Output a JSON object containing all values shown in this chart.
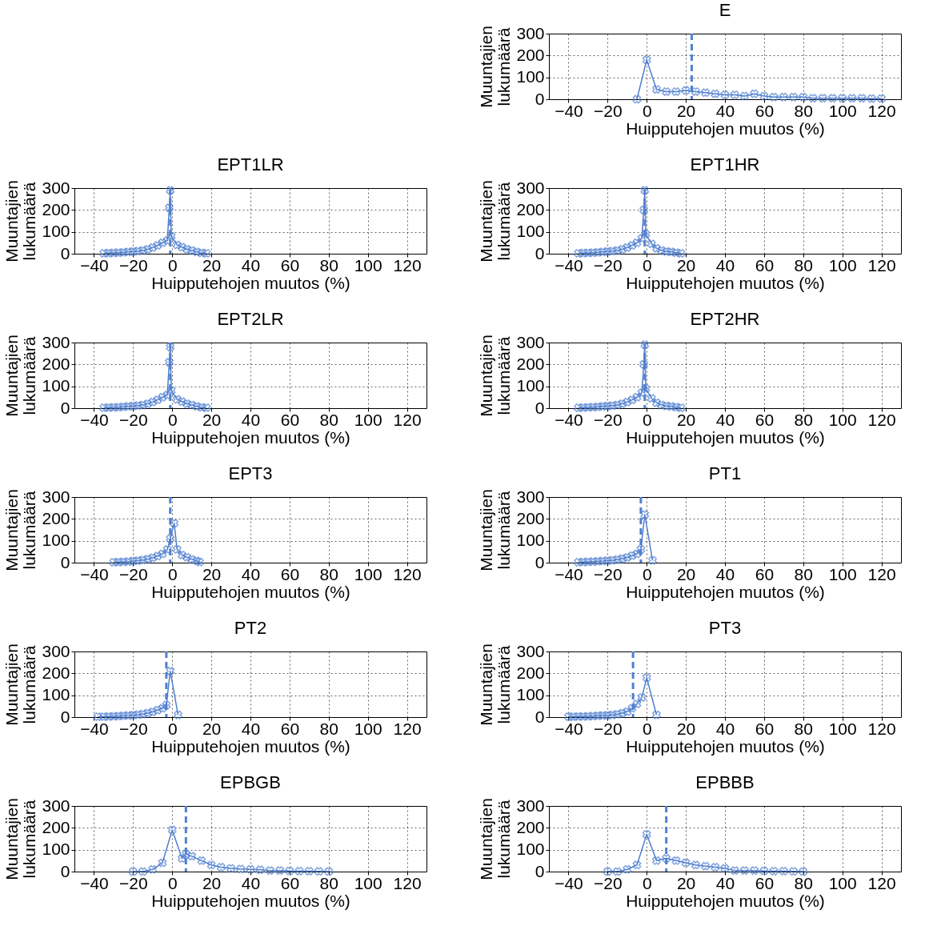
{
  "chart_data": [
    {
      "type": "line",
      "title": "E",
      "xlabel": "Huipputehojen muutos (%)",
      "ylabel": "Muuntajien lukumäärä",
      "color": "#4f7fd0",
      "marker": "cross",
      "grid": true,
      "xlim": [
        -50,
        130
      ],
      "xticks": [
        -40,
        -20,
        0,
        20,
        40,
        60,
        80,
        100,
        120
      ],
      "ylim": [
        0,
        300
      ],
      "yticks": [
        0,
        100,
        200,
        300
      ],
      "x": [
        -5,
        0,
        5,
        10,
        15,
        20,
        25,
        30,
        35,
        40,
        45,
        50,
        55,
        60,
        65,
        70,
        75,
        80,
        85,
        90,
        95,
        100,
        105,
        110,
        115,
        120
      ],
      "values": [
        0,
        180,
        45,
        35,
        35,
        40,
        35,
        30,
        25,
        20,
        20,
        15,
        25,
        15,
        10,
        10,
        10,
        10,
        5,
        5,
        5,
        5,
        5,
        5,
        3,
        3
      ],
      "ref_lines": [
        {
          "axis": "x",
          "value": 23,
          "line_style": "dashed"
        }
      ]
    },
    {
      "type": "line",
      "title": "EPT1LR",
      "xlabel": "Huipputehojen muutos (%)",
      "ylabel": "Muuntajien lukumäärä",
      "color": "#4f7fd0",
      "marker": "cross",
      "grid": true,
      "xlim": [
        -50,
        130
      ],
      "xticks": [
        -40,
        -20,
        0,
        20,
        40,
        60,
        80,
        100,
        120
      ],
      "ylim": [
        0,
        300
      ],
      "yticks": [
        0,
        100,
        200,
        300
      ],
      "x": [
        -35,
        -32.5,
        -30,
        -27.5,
        -25,
        -22.5,
        -20,
        -17.5,
        -15,
        -12.5,
        -10,
        -7.5,
        -5,
        -2.5,
        -1.5,
        -1,
        -0.5,
        2.5,
        5,
        7.5,
        10,
        12.5,
        15,
        17.5
      ],
      "values": [
        2,
        3,
        4,
        5,
        6,
        8,
        10,
        12,
        15,
        20,
        28,
        38,
        50,
        60,
        210,
        290,
        80,
        40,
        30,
        20,
        15,
        8,
        4,
        2
      ],
      "ref_lines": [
        {
          "axis": "x",
          "value": -1,
          "line_style": "dashed"
        }
      ]
    },
    {
      "type": "line",
      "title": "EPT1HR",
      "xlabel": "Huipputehojen muutos (%)",
      "ylabel": "Muuntajien lukumäärä",
      "color": "#4f7fd0",
      "marker": "cross",
      "grid": true,
      "xlim": [
        -50,
        130
      ],
      "xticks": [
        -40,
        -20,
        0,
        20,
        40,
        60,
        80,
        100,
        120
      ],
      "ylim": [
        0,
        300
      ],
      "yticks": [
        0,
        100,
        200,
        300
      ],
      "x": [
        -35,
        -32.5,
        -30,
        -27.5,
        -25,
        -22.5,
        -20,
        -17.5,
        -15,
        -12.5,
        -10,
        -7.5,
        -5,
        -2.5,
        -1.5,
        -1,
        -0.5,
        2.5,
        5,
        7.5,
        10,
        12.5,
        15,
        17.5
      ],
      "values": [
        2,
        3,
        4,
        5,
        6,
        8,
        10,
        12,
        15,
        20,
        28,
        38,
        50,
        70,
        200,
        290,
        90,
        45,
        25,
        15,
        10,
        8,
        5,
        2
      ],
      "ref_lines": [
        {
          "axis": "x",
          "value": -1,
          "line_style": "dashed"
        }
      ]
    },
    {
      "type": "line",
      "title": "EPT2LR",
      "xlabel": "Huipputehojen muutos (%)",
      "ylabel": "Muuntajien lukumäärä",
      "color": "#4f7fd0",
      "marker": "cross",
      "grid": true,
      "xlim": [
        -50,
        130
      ],
      "xticks": [
        -40,
        -20,
        0,
        20,
        40,
        60,
        80,
        100,
        120
      ],
      "ylim": [
        0,
        300
      ],
      "yticks": [
        0,
        100,
        200,
        300
      ],
      "x": [
        -35,
        -32.5,
        -30,
        -27.5,
        -25,
        -22.5,
        -20,
        -17.5,
        -15,
        -12.5,
        -10,
        -7.5,
        -5,
        -2.5,
        -1.5,
        -1,
        -0.5,
        2.5,
        5,
        7.5,
        10,
        12.5,
        15,
        17.5
      ],
      "values": [
        2,
        3,
        4,
        5,
        6,
        8,
        10,
        12,
        15,
        20,
        28,
        38,
        50,
        60,
        210,
        280,
        80,
        40,
        30,
        20,
        15,
        8,
        4,
        2
      ],
      "ref_lines": [
        {
          "axis": "x",
          "value": -1,
          "line_style": "dashed"
        }
      ]
    },
    {
      "type": "line",
      "title": "EPT2HR",
      "xlabel": "Huipputehojen muutos (%)",
      "ylabel": "Muuntajien lukumäärä",
      "color": "#4f7fd0",
      "marker": "cross",
      "grid": true,
      "xlim": [
        -50,
        130
      ],
      "xticks": [
        -40,
        -20,
        0,
        20,
        40,
        60,
        80,
        100,
        120
      ],
      "ylim": [
        0,
        300
      ],
      "yticks": [
        0,
        100,
        200,
        300
      ],
      "x": [
        -35,
        -32.5,
        -30,
        -27.5,
        -25,
        -22.5,
        -20,
        -17.5,
        -15,
        -12.5,
        -10,
        -7.5,
        -5,
        -2.5,
        -1.5,
        -1,
        -0.5,
        2.5,
        5,
        7.5,
        10,
        12.5,
        15,
        17.5
      ],
      "values": [
        2,
        3,
        4,
        5,
        6,
        8,
        10,
        12,
        15,
        20,
        28,
        38,
        50,
        70,
        200,
        290,
        90,
        45,
        25,
        15,
        10,
        8,
        5,
        2
      ],
      "ref_lines": [
        {
          "axis": "x",
          "value": -1,
          "line_style": "dashed"
        }
      ]
    },
    {
      "type": "line",
      "title": "EPT3",
      "xlabel": "Huipputehojen muutos (%)",
      "ylabel": "Muuntajien lukumäärä",
      "color": "#4f7fd0",
      "marker": "cross",
      "grid": true,
      "xlim": [
        -50,
        130
      ],
      "xticks": [
        -40,
        -20,
        0,
        20,
        40,
        60,
        80,
        100,
        120
      ],
      "ylim": [
        0,
        300
      ],
      "yticks": [
        0,
        100,
        200,
        300
      ],
      "x": [
        -30,
        -27.5,
        -25,
        -22.5,
        -20,
        -17.5,
        -15,
        -12.5,
        -10,
        -7.5,
        -5,
        -2.5,
        -1,
        1,
        2.5,
        5,
        7.5,
        10,
        12.5,
        14
      ],
      "values": [
        2,
        3,
        4,
        5,
        7,
        9,
        12,
        16,
        22,
        30,
        40,
        60,
        110,
        180,
        60,
        35,
        25,
        15,
        8,
        3
      ],
      "ref_lines": [
        {
          "axis": "x",
          "value": -1,
          "line_style": "dashed"
        }
      ]
    },
    {
      "type": "line",
      "title": "PT1",
      "xlabel": "Huipputehojen muutos (%)",
      "ylabel": "Muuntajien lukumäärä",
      "color": "#4f7fd0",
      "marker": "cross",
      "grid": true,
      "xlim": [
        -50,
        130
      ],
      "xticks": [
        -40,
        -20,
        0,
        20,
        40,
        60,
        80,
        100,
        120
      ],
      "ylim": [
        0,
        300
      ],
      "yticks": [
        0,
        100,
        200,
        300
      ],
      "x": [
        -35,
        -32.5,
        -30,
        -27.5,
        -25,
        -22.5,
        -20,
        -17.5,
        -15,
        -12.5,
        -10,
        -7.5,
        -5,
        -3,
        -1,
        3
      ],
      "values": [
        2,
        3,
        4,
        5,
        6,
        7,
        9,
        11,
        14,
        18,
        24,
        32,
        40,
        60,
        220,
        10
      ],
      "ref_lines": [
        {
          "axis": "x",
          "value": -3,
          "line_style": "dashed"
        }
      ]
    },
    {
      "type": "line",
      "title": "PT2",
      "xlabel": "Huipputehojen muutos (%)",
      "ylabel": "Muuntajien lukumäärä",
      "color": "#4f7fd0",
      "marker": "cross",
      "grid": true,
      "xlim": [
        -50,
        130
      ],
      "xticks": [
        -40,
        -20,
        0,
        20,
        40,
        60,
        80,
        100,
        120
      ],
      "ylim": [
        0,
        300
      ],
      "yticks": [
        0,
        100,
        200,
        300
      ],
      "x": [
        -38,
        -35,
        -32.5,
        -30,
        -27.5,
        -25,
        -22.5,
        -20,
        -17.5,
        -15,
        -12.5,
        -10,
        -7.5,
        -5,
        -3,
        -1,
        3
      ],
      "values": [
        2,
        2,
        3,
        4,
        5,
        6,
        7,
        9,
        11,
        14,
        18,
        24,
        32,
        40,
        55,
        210,
        10
      ],
      "ref_lines": [
        {
          "axis": "x",
          "value": -3,
          "line_style": "dashed"
        }
      ]
    },
    {
      "type": "line",
      "title": "PT3",
      "xlabel": "Huipputehojen muutos (%)",
      "ylabel": "Muuntajien lukumäärä",
      "color": "#4f7fd0",
      "marker": "cross",
      "grid": true,
      "xlim": [
        -50,
        130
      ],
      "xticks": [
        -40,
        -20,
        0,
        20,
        40,
        60,
        80,
        100,
        120
      ],
      "ylim": [
        0,
        300
      ],
      "yticks": [
        0,
        100,
        200,
        300
      ],
      "x": [
        -40,
        -37.5,
        -35,
        -32.5,
        -30,
        -27.5,
        -25,
        -22.5,
        -20,
        -17.5,
        -15,
        -12.5,
        -10,
        -7.5,
        -5,
        -2.5,
        0,
        5
      ],
      "values": [
        2,
        2,
        3,
        3,
        4,
        5,
        6,
        7,
        8,
        10,
        13,
        18,
        25,
        40,
        60,
        90,
        180,
        10
      ],
      "ref_lines": [
        {
          "axis": "x",
          "value": -7,
          "line_style": "dashed"
        }
      ]
    },
    {
      "type": "line",
      "title": "EPBGB",
      "xlabel": "Huipputehojen muutos (%)",
      "ylabel": "Muuntajien lukumäärä",
      "color": "#4f7fd0",
      "marker": "cross",
      "grid": true,
      "xlim": [
        -50,
        130
      ],
      "xticks": [
        -40,
        -20,
        0,
        20,
        40,
        60,
        80,
        100,
        120
      ],
      "ylim": [
        0,
        300
      ],
      "yticks": [
        0,
        100,
        200,
        300
      ],
      "x": [
        -20,
        -15,
        -10,
        -5,
        0,
        5,
        7,
        10,
        15,
        20,
        25,
        30,
        35,
        40,
        45,
        50,
        55,
        60,
        65,
        70,
        75,
        80
      ],
      "values": [
        0,
        0,
        10,
        40,
        190,
        60,
        80,
        70,
        50,
        30,
        20,
        15,
        12,
        10,
        8,
        5,
        5,
        3,
        2,
        2,
        1,
        0
      ],
      "ref_lines": [
        {
          "axis": "x",
          "value": 7,
          "line_style": "dashed"
        }
      ]
    },
    {
      "type": "line",
      "title": "EPBBB",
      "xlabel": "Huipputehojen muutos (%)",
      "ylabel": "Muuntajien lukumäärä",
      "color": "#4f7fd0",
      "marker": "cross",
      "grid": true,
      "xlim": [
        -50,
        130
      ],
      "xticks": [
        -40,
        -20,
        0,
        20,
        40,
        60,
        80,
        100,
        120
      ],
      "ylim": [
        0,
        300
      ],
      "yticks": [
        0,
        100,
        200,
        300
      ],
      "x": [
        -20,
        -15,
        -10,
        -5,
        0,
        5,
        10,
        15,
        20,
        25,
        30,
        35,
        40,
        45,
        50,
        55,
        60,
        65,
        70,
        75,
        80
      ],
      "values": [
        0,
        0,
        10,
        30,
        170,
        50,
        60,
        50,
        40,
        30,
        25,
        20,
        15,
        5,
        5,
        5,
        3,
        2,
        2,
        1,
        0
      ],
      "ref_lines": [
        {
          "axis": "x",
          "value": 10,
          "line_style": "dashed"
        }
      ]
    }
  ]
}
